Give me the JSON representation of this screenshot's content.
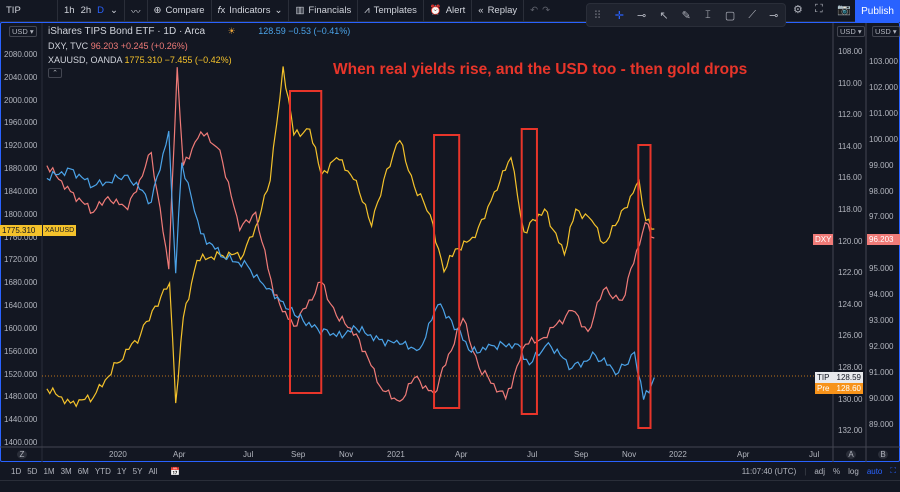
{
  "toolbar": {
    "symbol": "TIP",
    "intervals": [
      "1h",
      "2h",
      "D"
    ],
    "compare": "Compare",
    "indicators": "Indicators",
    "financials": "Financials",
    "templates": "Templates",
    "alert": "Alert",
    "replay": "Replay",
    "publish": "Publish",
    "accent": "#2962ff"
  },
  "legend": {
    "main": {
      "title": "iShares TIPS Bond ETF · 1D · Arca",
      "value": "128.59",
      "change": "−0.53 (−0.41%)",
      "color": "#4ba3e8"
    },
    "dxy": {
      "title": "DXY, TVC",
      "value": "96.203",
      "change": "+0.245 (+0.26%)",
      "color": "#f07b78"
    },
    "gold": {
      "title": "XAUUSD, OANDA",
      "value": "1775.310",
      "change": "−7.455 (−0.42%)",
      "color": "#f4c22b"
    }
  },
  "left_axis": {
    "currency": "USD",
    "labels": [
      "2080.000",
      "2040.000",
      "2000.000",
      "1960.000",
      "1920.000",
      "1880.000",
      "1840.000",
      "1800.000",
      "1760.000",
      "1720.000",
      "1680.000",
      "1640.000",
      "1600.000",
      "1560.000",
      "1520.000",
      "1480.000",
      "1440.000",
      "1400.000"
    ],
    "price_tag": "1775.310",
    "series_tag": "XAUUSD"
  },
  "tip_axis": {
    "currency": "USD",
    "labels": [
      "108.00",
      "110.00",
      "112.00",
      "114.00",
      "116.00",
      "118.00",
      "120.00",
      "122.00",
      "124.00",
      "126.00",
      "128.00",
      "130.00",
      "132.00"
    ],
    "tag_tip": {
      "label": "TIP",
      "value": "128.59"
    },
    "tag_pre": {
      "label": "Pre",
      "value": "128.60"
    },
    "scale": "A"
  },
  "dxy_axis": {
    "currency": "USD",
    "labels": [
      "103.000",
      "102.000",
      "101.000",
      "100.000",
      "99.000",
      "98.000",
      "97.000",
      "95.000",
      "94.000",
      "93.000",
      "92.000",
      "91.000",
      "90.000",
      "89.000"
    ],
    "price_tag": "96.203",
    "series_tag": "DXY",
    "scale": "B"
  },
  "time_axis": {
    "labels": [
      "2020",
      "Apr",
      "Jul",
      "Sep",
      "Nov",
      "2021",
      "Apr",
      "Jul",
      "Sep",
      "Nov",
      "2022",
      "Apr",
      "Jul"
    ],
    "corner": "Z"
  },
  "annotation": {
    "text": "When real yields rise, and the USD too - then gold drops",
    "color": "#e8352a"
  },
  "bottom": {
    "ranges": [
      "1D",
      "5D",
      "1M",
      "3M",
      "6M",
      "YTD",
      "1Y",
      "5Y",
      "All"
    ],
    "time": "11:07:40 (UTC)",
    "adj": "adj",
    "percent": "%",
    "log": "log",
    "auto": "auto"
  },
  "chart_data": {
    "type": "line",
    "series": [
      {
        "name": "XAUUSD",
        "axis": "left",
        "color": "#f4c22b",
        "points": [
          [
            "2019-10-01",
            1495
          ],
          [
            "2019-11-01",
            1470
          ],
          [
            "2019-12-01",
            1480
          ],
          [
            "2020-01-01",
            1540
          ],
          [
            "2020-02-01",
            1590
          ],
          [
            "2020-02-20",
            1640
          ],
          [
            "2020-03-10",
            1680
          ],
          [
            "2020-03-18",
            1470
          ],
          [
            "2020-03-28",
            1620
          ],
          [
            "2020-04-15",
            1720
          ],
          [
            "2020-05-15",
            1730
          ],
          [
            "2020-06-15",
            1730
          ],
          [
            "2020-07-01",
            1780
          ],
          [
            "2020-07-20",
            1860
          ],
          [
            "2020-08-06",
            2060
          ],
          [
            "2020-08-20",
            1940
          ],
          [
            "2020-09-10",
            1950
          ],
          [
            "2020-09-25",
            1870
          ],
          [
            "2020-10-15",
            1900
          ],
          [
            "2020-11-10",
            1860
          ],
          [
            "2020-11-30",
            1780
          ],
          [
            "2020-12-20",
            1880
          ],
          [
            "2021-01-06",
            1930
          ],
          [
            "2021-01-25",
            1850
          ],
          [
            "2021-02-15",
            1800
          ],
          [
            "2021-03-05",
            1700
          ],
          [
            "2021-03-20",
            1740
          ],
          [
            "2021-04-15",
            1760
          ],
          [
            "2021-05-10",
            1840
          ],
          [
            "2021-06-01",
            1900
          ],
          [
            "2021-06-18",
            1770
          ],
          [
            "2021-07-15",
            1810
          ],
          [
            "2021-08-10",
            1730
          ],
          [
            "2021-08-25",
            1810
          ],
          [
            "2021-09-15",
            1790
          ],
          [
            "2021-09-30",
            1750
          ],
          [
            "2021-10-20",
            1790
          ],
          [
            "2021-11-16",
            1860
          ],
          [
            "2021-11-25",
            1790
          ],
          [
            "2021-12-06",
            1775
          ]
        ]
      },
      {
        "name": "DXY",
        "axis": "dxy",
        "color": "#f07b78",
        "points": [
          [
            "2019-10-01",
            99.0
          ],
          [
            "2019-11-01",
            98.0
          ],
          [
            "2019-12-01",
            97.2
          ],
          [
            "2019-12-20",
            97.8
          ],
          [
            "2020-01-15",
            97.3
          ],
          [
            "2020-02-15",
            99.5
          ],
          [
            "2020-03-09",
            95.0
          ],
          [
            "2020-03-20",
            102.8
          ],
          [
            "2020-03-28",
            99.0
          ],
          [
            "2020-04-20",
            100.3
          ],
          [
            "2020-05-15",
            99.6
          ],
          [
            "2020-06-10",
            96.5
          ],
          [
            "2020-07-01",
            97.2
          ],
          [
            "2020-07-25",
            94.0
          ],
          [
            "2020-08-20",
            92.8
          ],
          [
            "2020-09-25",
            94.5
          ],
          [
            "2020-10-15",
            93.2
          ],
          [
            "2020-11-10",
            92.5
          ],
          [
            "2020-12-15",
            90.3
          ],
          [
            "2021-01-06",
            89.9
          ],
          [
            "2021-01-25",
            90.8
          ],
          [
            "2021-02-20",
            90.2
          ],
          [
            "2021-03-30",
            93.1
          ],
          [
            "2021-04-20",
            91.2
          ],
          [
            "2021-05-25",
            90.0
          ],
          [
            "2021-06-20",
            92.1
          ],
          [
            "2021-07-10",
            92.3
          ],
          [
            "2021-08-20",
            93.4
          ],
          [
            "2021-09-10",
            92.6
          ],
          [
            "2021-09-30",
            94.2
          ],
          [
            "2021-10-25",
            93.8
          ],
          [
            "2021-11-24",
            96.8
          ],
          [
            "2021-12-06",
            96.2
          ]
        ]
      },
      {
        "name": "TIP",
        "axis": "tip",
        "color": "#4ba3e8",
        "points": [
          [
            "2019-10-01",
            116.0
          ],
          [
            "2019-11-01",
            115.4
          ],
          [
            "2019-12-01",
            116.5
          ],
          [
            "2020-01-15",
            115.8
          ],
          [
            "2020-02-15",
            117.5
          ],
          [
            "2020-03-09",
            113.0
          ],
          [
            "2020-03-18",
            122.0
          ],
          [
            "2020-03-26",
            115.0
          ],
          [
            "2020-04-20",
            119.5
          ],
          [
            "2020-05-20",
            121.0
          ],
          [
            "2020-06-20",
            121.5
          ],
          [
            "2020-07-15",
            123.0
          ],
          [
            "2020-08-06",
            123.8
          ],
          [
            "2020-08-25",
            124.8
          ],
          [
            "2020-09-20",
            125.5
          ],
          [
            "2020-10-15",
            126.0
          ],
          [
            "2020-11-10",
            125.5
          ],
          [
            "2020-12-10",
            126.2
          ],
          [
            "2021-01-06",
            126.5
          ],
          [
            "2021-02-01",
            126.8
          ],
          [
            "2021-02-25",
            124.0
          ],
          [
            "2021-03-15",
            125.0
          ],
          [
            "2021-04-10",
            127.0
          ],
          [
            "2021-05-10",
            126.6
          ],
          [
            "2021-06-10",
            126.5
          ],
          [
            "2021-06-25",
            127.8
          ],
          [
            "2021-07-20",
            126.4
          ],
          [
            "2021-08-20",
            128.0
          ],
          [
            "2021-09-20",
            127.2
          ],
          [
            "2021-10-20",
            128.3
          ],
          [
            "2021-11-10",
            127.0
          ],
          [
            "2021-11-22",
            130.0
          ],
          [
            "2021-12-06",
            128.6
          ]
        ]
      }
    ],
    "highlight_boxes": [
      [
        "2020-08-15",
        "2020-09-25"
      ],
      [
        "2021-02-20",
        "2021-03-25"
      ],
      [
        "2021-06-15",
        "2021-07-05"
      ],
      [
        "2021-11-15",
        "2021-12-01"
      ]
    ]
  }
}
